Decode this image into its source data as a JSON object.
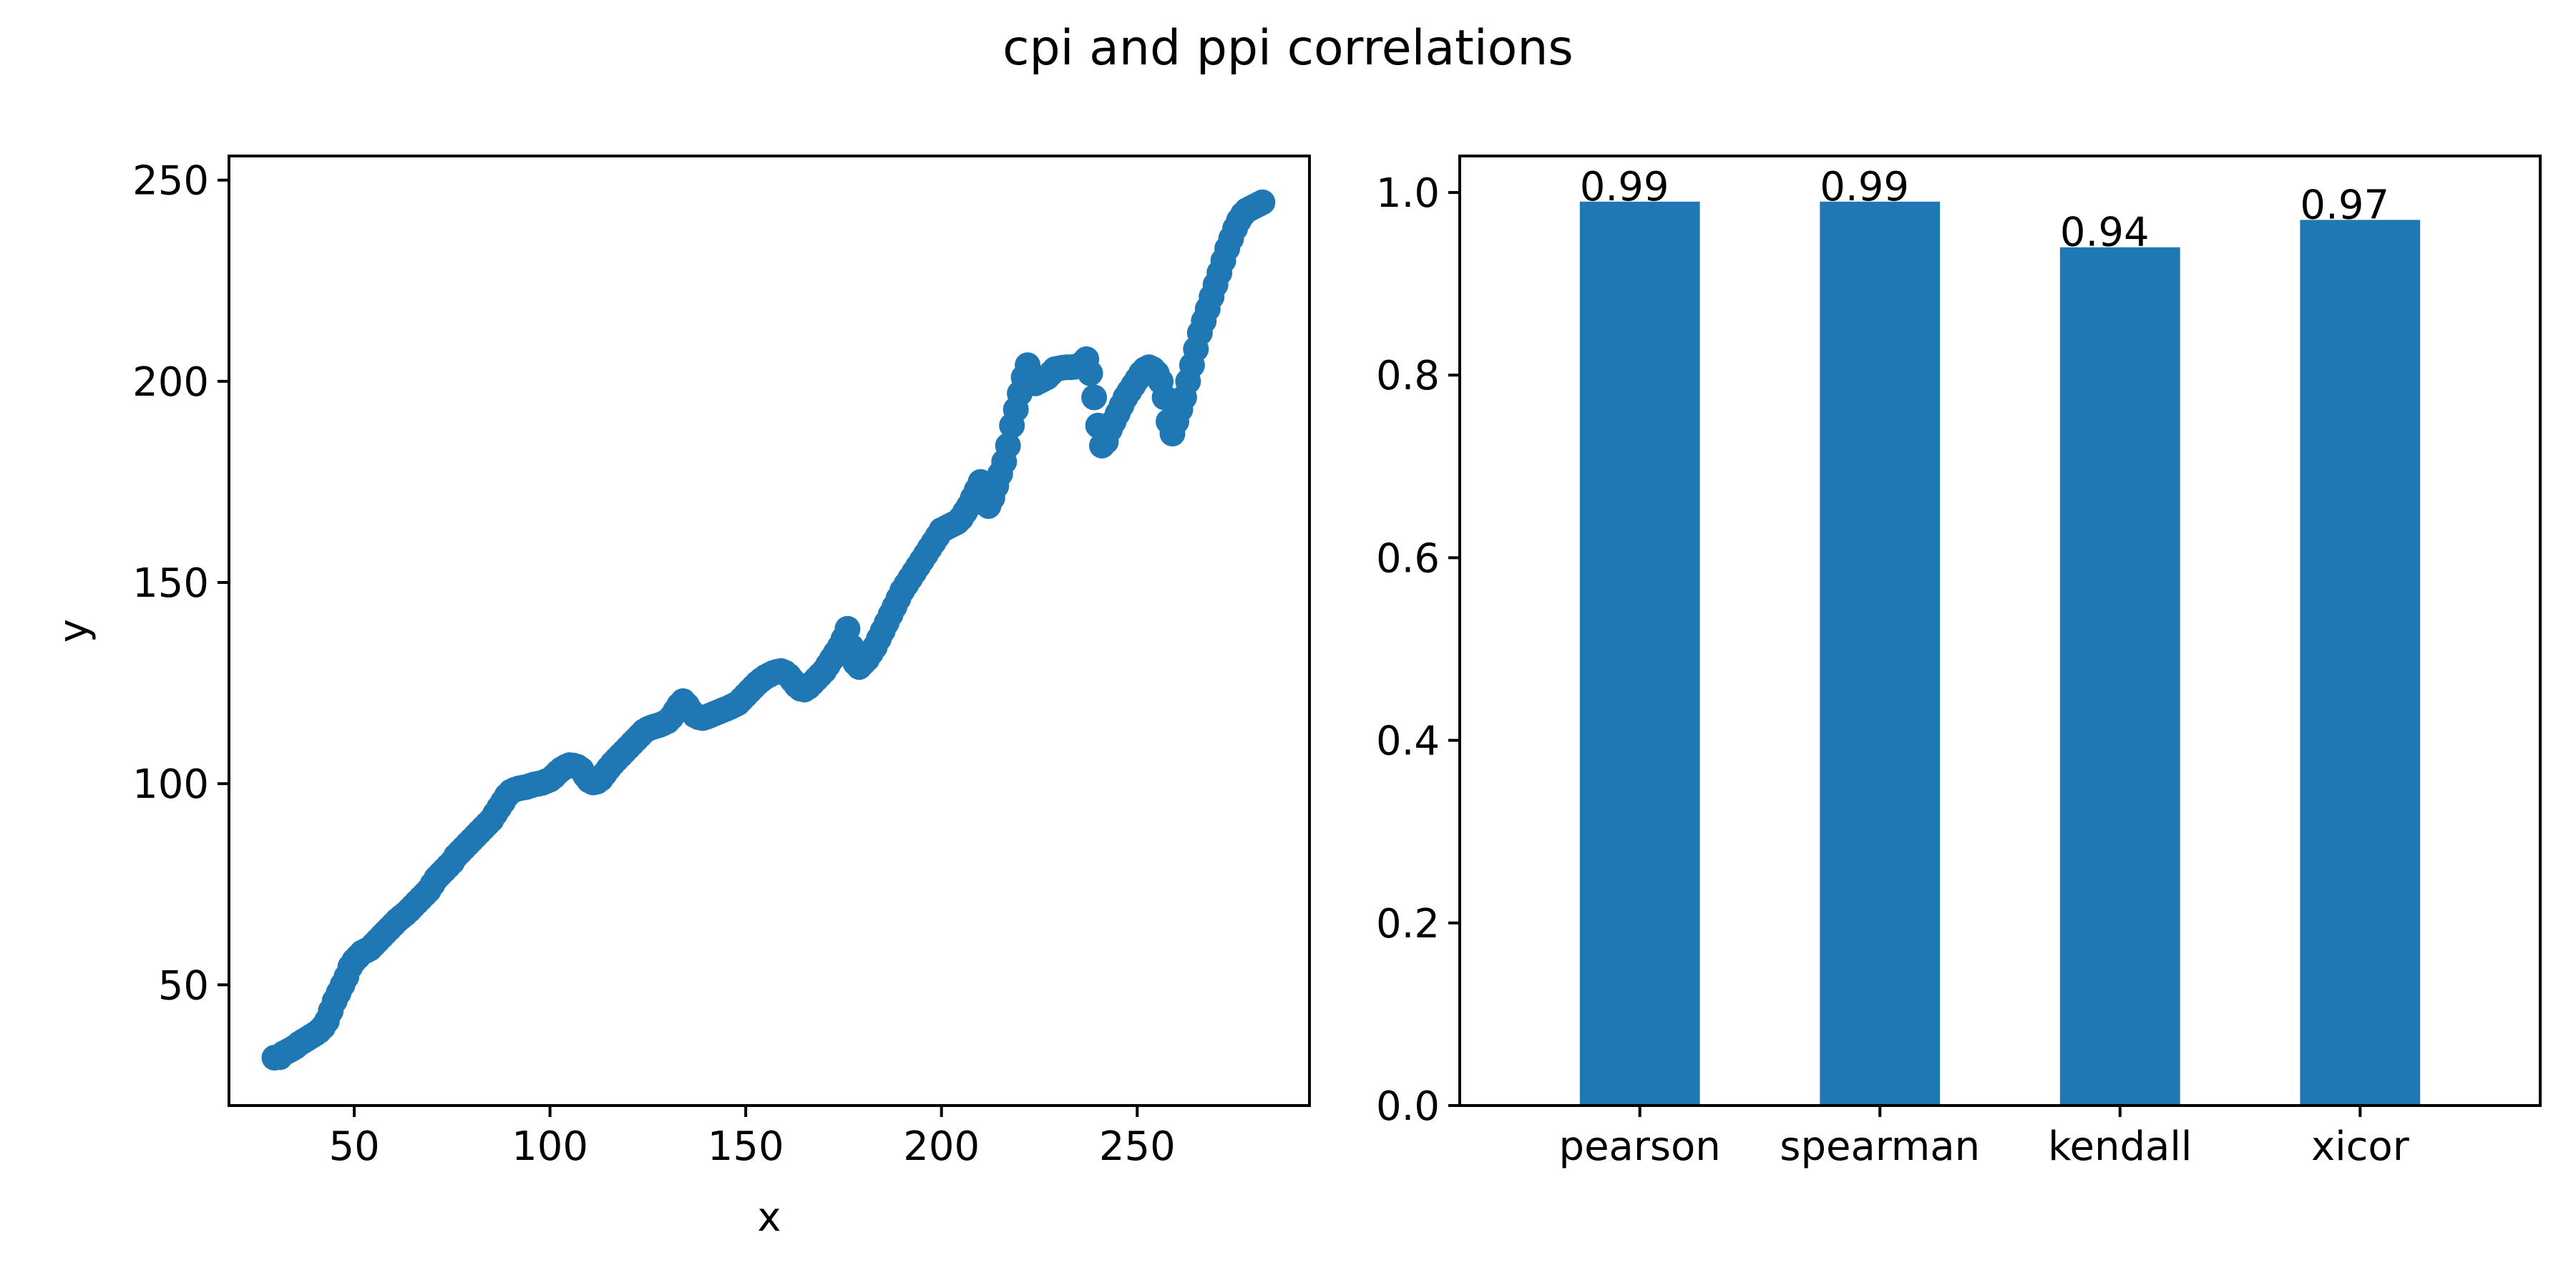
{
  "figure": {
    "title": "cpi and ppi correlations"
  },
  "colors": {
    "series": "#1f77b4",
    "axes": "#000000",
    "background": "#ffffff"
  },
  "chart_data": [
    {
      "type": "scatter",
      "title": "",
      "xlabel": "x",
      "ylabel": "y",
      "xlim": [
        18,
        294
      ],
      "ylim": [
        20,
        256
      ],
      "xticks": [
        50,
        100,
        150,
        200,
        250
      ],
      "yticks": [
        50,
        100,
        150,
        200,
        250
      ],
      "grid": false,
      "legend": "none",
      "series": [
        {
          "points": [
            [
              29.6,
              31.9
            ],
            [
              31,
              32
            ],
            [
              32,
              33
            ],
            [
              33,
              33.5
            ],
            [
              34,
              34
            ],
            [
              35,
              34.6
            ],
            [
              36,
              35.4
            ],
            [
              37,
              36
            ],
            [
              38,
              36.6
            ],
            [
              39,
              37.2
            ],
            [
              40,
              37.8
            ],
            [
              41,
              38.5
            ],
            [
              42,
              39.5
            ],
            [
              43,
              41
            ],
            [
              44,
              43.5
            ],
            [
              45,
              46
            ],
            [
              46,
              48
            ],
            [
              47,
              50
            ],
            [
              48,
              52
            ],
            [
              49,
              54.5
            ],
            [
              50,
              56
            ],
            [
              51,
              57
            ],
            [
              52,
              58
            ],
            [
              53,
              58.5
            ],
            [
              54,
              59
            ],
            [
              55,
              60
            ],
            [
              56,
              61
            ],
            [
              57,
              62
            ],
            [
              58,
              63
            ],
            [
              59,
              64
            ],
            [
              60,
              65
            ],
            [
              61,
              66
            ],
            [
              62,
              66.8
            ],
            [
              63,
              67.6
            ],
            [
              64,
              68.5
            ],
            [
              65,
              69.5
            ],
            [
              66,
              70.5
            ],
            [
              67,
              71.5
            ],
            [
              68,
              72.5
            ],
            [
              69,
              73.5
            ],
            [
              70,
              75
            ],
            [
              71,
              76.5
            ],
            [
              72,
              77.5
            ],
            [
              73,
              78.5
            ],
            [
              74,
              79.5
            ],
            [
              75,
              80.5
            ],
            [
              76,
              82
            ],
            [
              77,
              83
            ],
            [
              78,
              84
            ],
            [
              79,
              85
            ],
            [
              80,
              86
            ],
            [
              81,
              87
            ],
            [
              82,
              88
            ],
            [
              83,
              89
            ],
            [
              84,
              90
            ],
            [
              85,
              91
            ],
            [
              86,
              92.5
            ],
            [
              87,
              94
            ],
            [
              88,
              95.5
            ],
            [
              89,
              97
            ],
            [
              90,
              98
            ],
            [
              91,
              98.5
            ],
            [
              92,
              98.8
            ],
            [
              93,
              99
            ],
            [
              94,
              99.2
            ],
            [
              95,
              99.5
            ],
            [
              96,
              99.8
            ],
            [
              97,
              100
            ],
            [
              98,
              100.2
            ],
            [
              99,
              100.6
            ],
            [
              100,
              101
            ],
            [
              101,
              101.8
            ],
            [
              102,
              102.8
            ],
            [
              103,
              103.6
            ],
            [
              104,
              104.2
            ],
            [
              105,
              104.6
            ],
            [
              106,
              104.5
            ],
            [
              107,
              104.2
            ],
            [
              108,
              103.5
            ],
            [
              109,
              102
            ],
            [
              110,
              100.8
            ],
            [
              111,
              100.3
            ],
            [
              112,
              100.5
            ],
            [
              113,
              101.2
            ],
            [
              114,
              102.5
            ],
            [
              115,
              103.8
            ],
            [
              116,
              105
            ],
            [
              117,
              106
            ],
            [
              118,
              107
            ],
            [
              119,
              108
            ],
            [
              120,
              109
            ],
            [
              121,
              110
            ],
            [
              122,
              111
            ],
            [
              123,
              112
            ],
            [
              124,
              113
            ],
            [
              125,
              113.6
            ],
            [
              126,
              114
            ],
            [
              127,
              114.3
            ],
            [
              128,
              114.6
            ],
            [
              129,
              115
            ],
            [
              130,
              115.5
            ],
            [
              131,
              116.5
            ],
            [
              132,
              118
            ],
            [
              133,
              119.5
            ],
            [
              134,
              120.5
            ],
            [
              135,
              119.5
            ],
            [
              136,
              118
            ],
            [
              137,
              117
            ],
            [
              138,
              116.5
            ],
            [
              139,
              116.3
            ],
            [
              140,
              116.6
            ],
            [
              141,
              117
            ],
            [
              142,
              117.4
            ],
            [
              143,
              117.8
            ],
            [
              144,
              118.2
            ],
            [
              145,
              118.6
            ],
            [
              146,
              119
            ],
            [
              147,
              119.5
            ],
            [
              148,
              120
            ],
            [
              149,
              121
            ],
            [
              150,
              122
            ],
            [
              151,
              123
            ],
            [
              152,
              124
            ],
            [
              153,
              125
            ],
            [
              154,
              125.8
            ],
            [
              155,
              126.5
            ],
            [
              156,
              127
            ],
            [
              157,
              127.5
            ],
            [
              158,
              127.8
            ],
            [
              159,
              128
            ],
            [
              160,
              127.6
            ],
            [
              161,
              126.8
            ],
            [
              162,
              125.6
            ],
            [
              163,
              124.4
            ],
            [
              164,
              123.6
            ],
            [
              165,
              123.4
            ],
            [
              166,
              124
            ],
            [
              167,
              125
            ],
            [
              168,
              126
            ],
            [
              169,
              127
            ],
            [
              170,
              128
            ],
            [
              171,
              129.5
            ],
            [
              172,
              131
            ],
            [
              173,
              132.5
            ],
            [
              174,
              134
            ],
            [
              175,
              136
            ],
            [
              176,
              138.5
            ],
            [
              177,
              134
            ],
            [
              178,
              130
            ],
            [
              179,
              129
            ],
            [
              180,
              130
            ],
            [
              181,
              131
            ],
            [
              182,
              132.5
            ],
            [
              183,
              134
            ],
            [
              184,
              136
            ],
            [
              185,
              138
            ],
            [
              186,
              140
            ],
            [
              187,
              142
            ],
            [
              188,
              144
            ],
            [
              189,
              146
            ],
            [
              190,
              148
            ],
            [
              191,
              149.5
            ],
            [
              192,
              151
            ],
            [
              193,
              152.5
            ],
            [
              194,
              154
            ],
            [
              195,
              155.5
            ],
            [
              196,
              157
            ],
            [
              197,
              158.5
            ],
            [
              198,
              160
            ],
            [
              199,
              161.5
            ],
            [
              200,
              163
            ],
            [
              201,
              163.5
            ],
            [
              202,
              164
            ],
            [
              203,
              164.5
            ],
            [
              204,
              165
            ],
            [
              205,
              166
            ],
            [
              206,
              167.5
            ],
            [
              207,
              169
            ],
            [
              208,
              171
            ],
            [
              209,
              173
            ],
            [
              210,
              175
            ],
            [
              211,
              172
            ],
            [
              212,
              169
            ],
            [
              213,
              171
            ],
            [
              214,
              174
            ],
            [
              215,
              177
            ],
            [
              216,
              180
            ],
            [
              217,
              184
            ],
            [
              218,
              189
            ],
            [
              219,
              193
            ],
            [
              220,
              197
            ],
            [
              221,
              201
            ],
            [
              222,
              204
            ],
            [
              223,
              200
            ],
            [
              224,
              199.5
            ],
            [
              225,
              200
            ],
            [
              226,
              200.5
            ],
            [
              227,
              201
            ],
            [
              228,
              202
            ],
            [
              229,
              203
            ],
            [
              230,
              203.2
            ],
            [
              231,
              203.4
            ],
            [
              232,
              203.5
            ],
            [
              233,
              203.5
            ],
            [
              234,
              203.6
            ],
            [
              235,
              203.8
            ],
            [
              236,
              204.5
            ],
            [
              237,
              205.5
            ],
            [
              238,
              202
            ],
            [
              239,
              196
            ],
            [
              240,
              189
            ],
            [
              241,
              184
            ],
            [
              242,
              185
            ],
            [
              243,
              188
            ],
            [
              244,
              190
            ],
            [
              245,
              192
            ],
            [
              246,
              194
            ],
            [
              247,
              196
            ],
            [
              248,
              197.5
            ],
            [
              249,
              199
            ],
            [
              250,
              200.5
            ],
            [
              251,
              202
            ],
            [
              252,
              203
            ],
            [
              253,
              203.5
            ],
            [
              254,
              203
            ],
            [
              255,
              202
            ],
            [
              256,
              200
            ],
            [
              257,
              196
            ],
            [
              258,
              190
            ],
            [
              259,
              187
            ],
            [
              260,
              190
            ],
            [
              261,
              193
            ],
            [
              262,
              196
            ],
            [
              263,
              200
            ],
            [
              264,
              204
            ],
            [
              265,
              208
            ],
            [
              266,
              212
            ],
            [
              267,
              215
            ],
            [
              268,
              218
            ],
            [
              269,
              221
            ],
            [
              270,
              224
            ],
            [
              271,
              227
            ],
            [
              272,
              230
            ],
            [
              273,
              233
            ],
            [
              274,
              235.5
            ],
            [
              275,
              238
            ],
            [
              276,
              240
            ],
            [
              277,
              241.5
            ],
            [
              278,
              242.5
            ],
            [
              279,
              243
            ],
            [
              280,
              243.5
            ],
            [
              281,
              244
            ],
            [
              282,
              244.5
            ]
          ]
        }
      ]
    },
    {
      "type": "bar",
      "title": "",
      "xlabel": "",
      "ylabel": "",
      "categories": [
        "pearson",
        "spearman",
        "kendall",
        "xicor"
      ],
      "values": [
        0.99,
        0.99,
        0.94,
        0.97
      ],
      "labels": [
        "0.99",
        "0.99",
        "0.94",
        "0.97"
      ],
      "ylim": [
        0,
        1.04
      ],
      "yticks": [
        "0.0",
        "0.2",
        "0.4",
        "0.6",
        "0.8",
        "1.0"
      ],
      "grid": false,
      "legend": "none"
    }
  ]
}
